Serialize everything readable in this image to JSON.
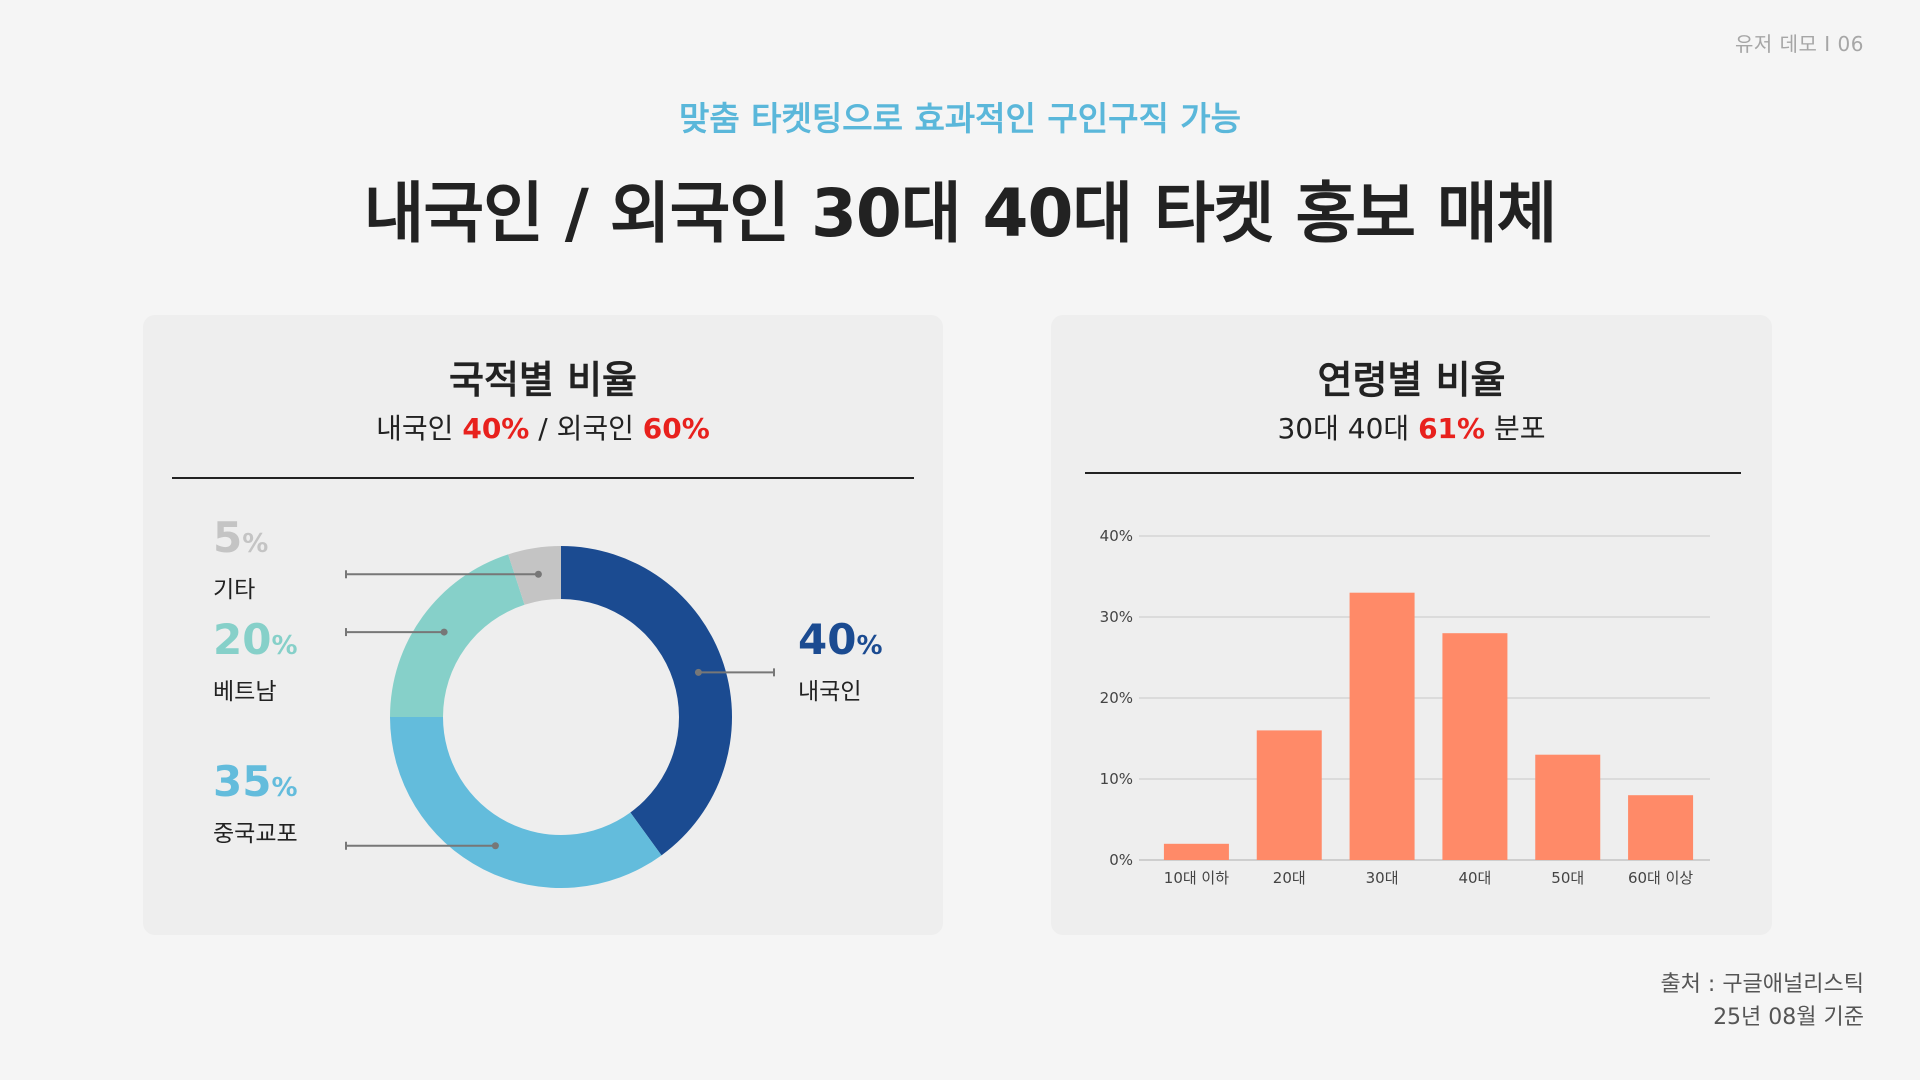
{
  "header": {
    "page_number": "유저 데모 I  06",
    "subtitle": "맞춤 타켓팅으로 효과적인 구인구직 가능",
    "title": "내국인 / 외국인 30대 40대 타켓 홍보 매체"
  },
  "nationality_card": {
    "title": "국적별 비율",
    "summary_prefix": "내국인 ",
    "summary_value_1": "40%",
    "summary_middle": " / 외국인 ",
    "summary_value_2": "60%"
  },
  "age_card": {
    "title": "연령별 비율",
    "summary_prefix": "30대 40대 ",
    "summary_value": "61%",
    "summary_suffix": " 분포"
  },
  "source": {
    "line1": "출처 : 구글애널리스틱",
    "line2": "25년 08월 기준"
  },
  "colors": {
    "domestic": "#1b4b91",
    "chinese": "#63bcdc",
    "vietnam": "#86d0c9",
    "other": "#c4c4c4",
    "bar": "#ff8a68",
    "highlight": "#e8211d"
  },
  "chart_data": [
    {
      "type": "pie",
      "title": "국적별 비율",
      "categories": [
        "내국인",
        "중국교포",
        "베트남",
        "기타"
      ],
      "values": [
        40,
        35,
        20,
        5
      ],
      "value_labels": [
        "40",
        "35",
        "20",
        "5"
      ],
      "unit": "%",
      "donut": true
    },
    {
      "type": "bar",
      "title": "연령별 비율",
      "categories": [
        "10대 이하",
        "20대",
        "30대",
        "40대",
        "50대",
        "60대 이상"
      ],
      "values": [
        2,
        16,
        33,
        28,
        13,
        8
      ],
      "yticks": [
        "0%",
        "10%",
        "20%",
        "30%",
        "40%"
      ],
      "ylim": [
        0,
        40
      ],
      "grid": true
    }
  ]
}
